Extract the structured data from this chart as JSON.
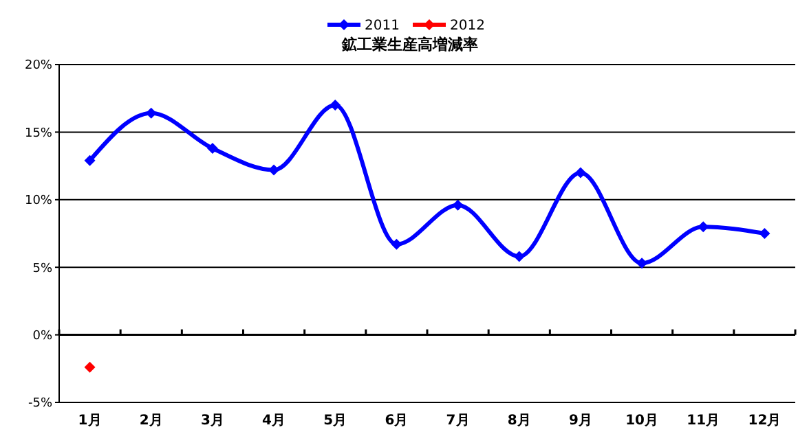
{
  "chart_data": {
    "type": "line",
    "title": "鉱工業生産高増減率",
    "categories": [
      "1月",
      "2月",
      "3月",
      "4月",
      "5月",
      "6月",
      "7月",
      "8月",
      "9月",
      "10月",
      "11月",
      "12月"
    ],
    "series": [
      {
        "name": "2011",
        "color": "#0000ff",
        "values": [
          12.9,
          16.4,
          13.8,
          12.2,
          17.0,
          6.7,
          9.6,
          5.8,
          12.0,
          5.3,
          8.0,
          7.5
        ]
      },
      {
        "name": "2012",
        "color": "#ff0000",
        "values": [
          -2.4,
          null,
          null,
          null,
          null,
          null,
          null,
          null,
          null,
          null,
          null,
          null
        ]
      }
    ],
    "ylim": [
      -5,
      20
    ],
    "yticks": [
      {
        "value": -5,
        "label": "-5%"
      },
      {
        "value": 0,
        "label": "0%"
      },
      {
        "value": 5,
        "label": "5%"
      },
      {
        "value": 10,
        "label": "10%"
      },
      {
        "value": 15,
        "label": "15%"
      },
      {
        "value": 20,
        "label": "20%"
      }
    ],
    "grid": "y",
    "legend": "top",
    "marker": "diamond",
    "line_style": "solid"
  }
}
